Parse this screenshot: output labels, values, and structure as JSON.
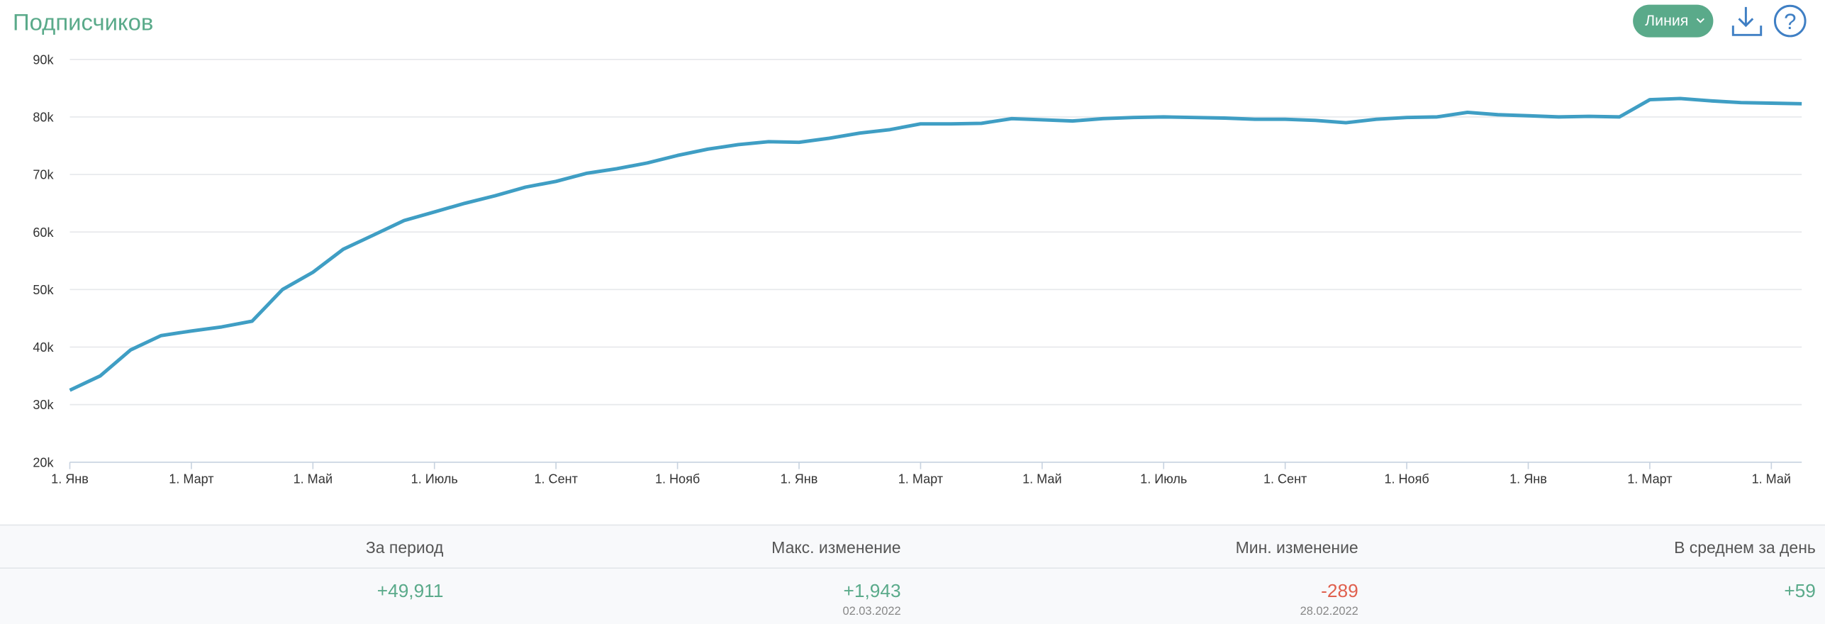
{
  "header": {
    "title": "Подписчиков",
    "button": "Линия"
  },
  "chart_data": {
    "type": "line",
    "color": "#3f9ec4",
    "grid": true,
    "categories": [
      "1. Янв",
      null,
      null,
      null,
      "1. Март",
      null,
      null,
      null,
      "1. Май",
      null,
      null,
      null,
      "1. Июль",
      null,
      null,
      null,
      "1. Сент",
      null,
      null,
      null,
      "1. Нояб",
      null,
      null,
      null,
      "1. Янв",
      null,
      null,
      null,
      "1. Март",
      null,
      null,
      null,
      "1. Май",
      null,
      null,
      null,
      "1. Июль",
      null,
      null,
      null,
      "1. Сент",
      null,
      null,
      null,
      "1. Нояб",
      null,
      null,
      null,
      "1. Янв",
      null,
      null,
      null,
      "1. Март",
      null,
      null,
      null,
      "1. Май",
      null
    ],
    "values": [
      32500,
      35000,
      39500,
      42000,
      42800,
      43500,
      44500,
      50000,
      53000,
      57000,
      59500,
      62000,
      63500,
      65000,
      66300,
      67800,
      68800,
      70200,
      71000,
      72000,
      73300,
      74400,
      75200,
      75700,
      75600,
      76300,
      77200,
      77800,
      78800,
      78800,
      78900,
      79700,
      79500,
      79300,
      79700,
      79900,
      80000,
      79900,
      79800,
      79600,
      79600,
      79400,
      79000,
      79600,
      79900,
      80000,
      80800,
      80400,
      80200,
      80000,
      80100,
      80000,
      83000,
      83200,
      82800,
      82500,
      82400,
      82300
    ],
    "ylim": [
      20000,
      90000
    ],
    "yticks": [
      {
        "value": 20000,
        "label": "20k"
      },
      {
        "value": 30000,
        "label": "30k"
      },
      {
        "value": 40000,
        "label": "40k"
      },
      {
        "value": 50000,
        "label": "50k"
      },
      {
        "value": 60000,
        "label": "60k"
      },
      {
        "value": 70000,
        "label": "70k"
      },
      {
        "value": 80000,
        "label": "80k"
      },
      {
        "value": 90000,
        "label": "90k"
      }
    ]
  },
  "stats": [
    {
      "label": "За период",
      "value": "+49,911",
      "color": "#5aaa8a"
    },
    {
      "label": "Макс. изменение",
      "value": "+1,943",
      "date": "02.03.2022",
      "color": "#5aaa8a"
    },
    {
      "label": "Мин. изменение",
      "value": "-289",
      "date": "28.02.2022",
      "color": "#e0604e"
    },
    {
      "label": "В среднем за день",
      "value": "+59",
      "color": "#5aaa8a"
    }
  ]
}
